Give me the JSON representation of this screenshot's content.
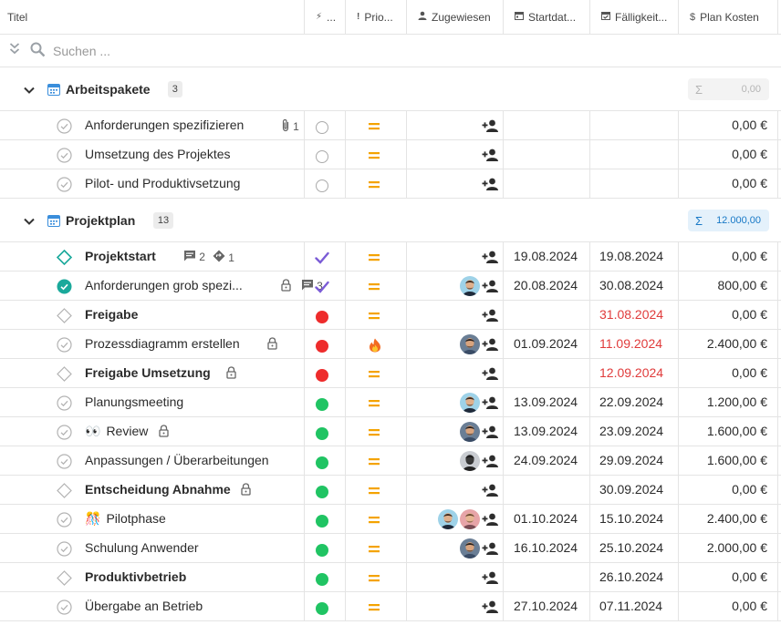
{
  "columns": {
    "title": "Titel",
    "status": "...",
    "priority": "Prio...",
    "assigned": "Zugewiesen",
    "start": "Startdat...",
    "due": "Fälligkeit...",
    "cost": "Plan Kosten"
  },
  "search": {
    "placeholder": "Suchen ..."
  },
  "colors": {
    "red_status": "#ee2c2c",
    "green_status": "#20c463",
    "done_check": "#7b5cd6",
    "priority": "#f4a300",
    "overdue": "#e03b3b",
    "accent": "#1778c6"
  },
  "groups": [
    {
      "title": "Arbeitspakete",
      "count": "3",
      "sum": "0,00",
      "rows": [
        {
          "icon": "circle-check",
          "title": "Anforderungen spezifizieren",
          "milestone": false,
          "attach": "1",
          "status": "open",
          "prio": "equal",
          "cost": "0,00 €"
        },
        {
          "icon": "circle-check",
          "title": "Umsetzung des Projektes",
          "milestone": false,
          "status": "open",
          "prio": "equal",
          "cost": "0,00 €"
        },
        {
          "icon": "circle-check",
          "title": "Pilot- und Produktivsetzung",
          "milestone": false,
          "status": "open",
          "prio": "equal",
          "cost": "0,00 €"
        }
      ]
    },
    {
      "title": "Projektplan",
      "count": "13",
      "sum": "12.000,00",
      "rows": [
        {
          "icon": "diamond-teal",
          "title": "Projektstart",
          "milestone": true,
          "comments": "2",
          "deps": "1",
          "status": "done",
          "prio": "equal",
          "start": "19.08.2024",
          "due": "19.08.2024",
          "cost": "0,00 €"
        },
        {
          "icon": "circle-filled-teal",
          "title": "Anforderungen grob spezi...",
          "milestone": false,
          "lock": true,
          "comments": "3",
          "status": "done",
          "prio": "equal",
          "avatars": [
            "man-a"
          ],
          "start": "20.08.2024",
          "due": "30.08.2024",
          "cost": "800,00 €"
        },
        {
          "icon": "diamond",
          "title": "Freigabe",
          "milestone": true,
          "status": "red",
          "prio": "equal",
          "due": "31.08.2024",
          "late": true,
          "cost": "0,00 €"
        },
        {
          "icon": "circle-check",
          "title": "Prozessdiagramm erstellen",
          "milestone": false,
          "lock": true,
          "status": "red",
          "prio": "fire",
          "avatars": [
            "man-b"
          ],
          "start": "01.09.2024",
          "due": "11.09.2024",
          "late": true,
          "cost": "2.400,00 €"
        },
        {
          "icon": "diamond",
          "title": "Freigabe Umsetzung",
          "milestone": true,
          "lock": true,
          "status": "red",
          "prio": "equal",
          "due": "12.09.2024",
          "late": true,
          "cost": "0,00 €"
        },
        {
          "icon": "circle-check",
          "title": "Planungsmeeting",
          "milestone": false,
          "status": "green",
          "prio": "equal",
          "avatars": [
            "man-a"
          ],
          "start": "13.09.2024",
          "due": "22.09.2024",
          "cost": "1.200,00 €"
        },
        {
          "icon": "circle-check",
          "title": "Review",
          "emoji": "👀",
          "milestone": false,
          "lock": true,
          "status": "green",
          "prio": "equal",
          "avatars": [
            "man-b"
          ],
          "start": "13.09.2024",
          "due": "23.09.2024",
          "cost": "1.600,00 €"
        },
        {
          "icon": "circle-check",
          "title": "Anpassungen / Überarbeitungen",
          "milestone": false,
          "status": "green",
          "prio": "equal",
          "avatars": [
            "man-dark"
          ],
          "start": "24.09.2024",
          "due": "29.09.2024",
          "cost": "1.600,00 €"
        },
        {
          "icon": "diamond",
          "title": "Entscheidung Abnahme",
          "milestone": true,
          "lock": true,
          "status": "green",
          "prio": "equal",
          "due": "30.09.2024",
          "cost": "0,00 €"
        },
        {
          "icon": "circle-check",
          "title": "Pilotphase",
          "emoji": "🎊",
          "milestone": false,
          "status": "green",
          "prio": "equal",
          "avatars": [
            "man-a",
            "man-c"
          ],
          "start": "01.10.2024",
          "due": "15.10.2024",
          "cost": "2.400,00 €"
        },
        {
          "icon": "circle-check",
          "title": "Schulung Anwender",
          "milestone": false,
          "status": "green",
          "prio": "equal",
          "avatars": [
            "man-b"
          ],
          "start": "16.10.2024",
          "due": "25.10.2024",
          "cost": "2.000,00 €"
        },
        {
          "icon": "diamond",
          "title": "Produktivbetrieb",
          "milestone": true,
          "status": "green",
          "prio": "equal",
          "due": "26.10.2024",
          "cost": "0,00 €"
        },
        {
          "icon": "circle-check",
          "title": "Übergabe an Betrieb",
          "milestone": false,
          "status": "green",
          "prio": "equal",
          "start": "27.10.2024",
          "due": "07.11.2024",
          "cost": "0,00 €"
        }
      ]
    }
  ]
}
